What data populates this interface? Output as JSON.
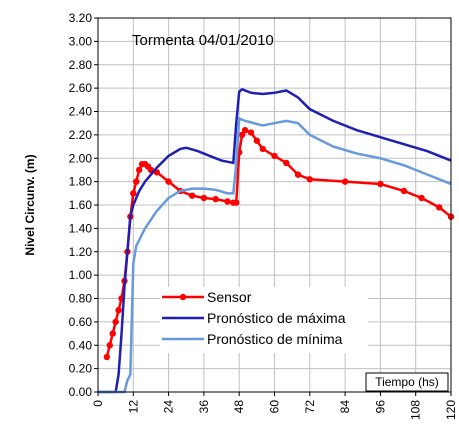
{
  "chart_data": {
    "type": "line",
    "title": "Tormenta  04/01/2010",
    "y_label": "Nivel Circunv. (m)",
    "x_label": "Tiempo (hs)",
    "xlim": [
      0,
      120
    ],
    "xticks": [
      0,
      12,
      24,
      36,
      48,
      60,
      72,
      84,
      96,
      108,
      120
    ],
    "ylim": [
      0,
      3.2
    ],
    "yticks": [
      {
        "value": 0,
        "label": "0.00"
      },
      {
        "value": 0.2,
        "label": "0.20"
      },
      {
        "value": 0.4,
        "label": "0.40"
      },
      {
        "value": 0.6,
        "label": "0.60"
      },
      {
        "value": 0.8,
        "label": "0.80"
      },
      {
        "value": 1,
        "label": "1.00"
      },
      {
        "value": 1.2,
        "label": "1.20"
      },
      {
        "value": 1.4,
        "label": "1.40"
      },
      {
        "value": 1.6,
        "label": "1.60"
      },
      {
        "value": 1.8,
        "label": "1.80"
      },
      {
        "value": 2,
        "label": "2.00"
      },
      {
        "value": 2.2,
        "label": "2.20"
      },
      {
        "value": 2.4,
        "label": "2.40"
      },
      {
        "value": 2.6,
        "label": "2.60"
      },
      {
        "value": 2.8,
        "label": "2.80"
      },
      {
        "value": 3,
        "label": "3.00"
      },
      {
        "value": 3.2,
        "label": "3.20"
      }
    ],
    "grid": true,
    "series": [
      {
        "name": "Sensor",
        "color": "#ff0000",
        "markers": true,
        "x": [
          3,
          4,
          5,
          6,
          7,
          8,
          9,
          10,
          11,
          12,
          13,
          14,
          15,
          16,
          17,
          18,
          20,
          24,
          28,
          32,
          36,
          40,
          44,
          46,
          47,
          48,
          49,
          50,
          52,
          54,
          56,
          60,
          64,
          68,
          72,
          84,
          96,
          104,
          110,
          116,
          120
        ],
        "values": [
          0.3,
          0.4,
          0.5,
          0.6,
          0.7,
          0.8,
          0.95,
          1.2,
          1.5,
          1.7,
          1.8,
          1.9,
          1.95,
          1.95,
          1.93,
          1.9,
          1.88,
          1.8,
          1.72,
          1.68,
          1.66,
          1.65,
          1.63,
          1.62,
          1.62,
          2.05,
          2.2,
          2.24,
          2.22,
          2.15,
          2.08,
          2.02,
          1.96,
          1.86,
          1.82,
          1.8,
          1.78,
          1.72,
          1.66,
          1.58,
          1.5
        ]
      },
      {
        "name": "Pronóstico de máxima",
        "color": "#1f1fb4",
        "markers": false,
        "x": [
          0,
          6,
          7,
          8,
          9,
          10,
          11,
          12,
          14,
          16,
          20,
          24,
          28,
          30,
          34,
          38,
          42,
          46,
          47,
          48,
          49,
          52,
          56,
          60,
          64,
          68,
          72,
          80,
          88,
          96,
          104,
          112,
          120
        ],
        "values": [
          0,
          0,
          0.15,
          0.5,
          0.9,
          1.2,
          1.5,
          1.6,
          1.72,
          1.8,
          1.92,
          2.02,
          2.08,
          2.09,
          2.06,
          2.02,
          1.98,
          1.96,
          2.3,
          2.57,
          2.59,
          2.56,
          2.55,
          2.56,
          2.58,
          2.52,
          2.42,
          2.32,
          2.24,
          2.18,
          2.12,
          2.06,
          1.98
        ]
      },
      {
        "name": "Pronóstico de mínima",
        "color": "#6699dd",
        "markers": false,
        "x": [
          0,
          9,
          10,
          11,
          12,
          13,
          16,
          20,
          24,
          28,
          32,
          36,
          40,
          44,
          46,
          47,
          48,
          50,
          56,
          60,
          64,
          68,
          72,
          80,
          88,
          96,
          104,
          112,
          120
        ],
        "values": [
          0,
          0,
          0.1,
          0.15,
          1.1,
          1.25,
          1.4,
          1.55,
          1.66,
          1.72,
          1.74,
          1.74,
          1.73,
          1.7,
          1.7,
          1.95,
          2.34,
          2.32,
          2.28,
          2.3,
          2.32,
          2.3,
          2.2,
          2.1,
          2.04,
          2.0,
          1.94,
          1.86,
          1.78
        ]
      }
    ]
  }
}
